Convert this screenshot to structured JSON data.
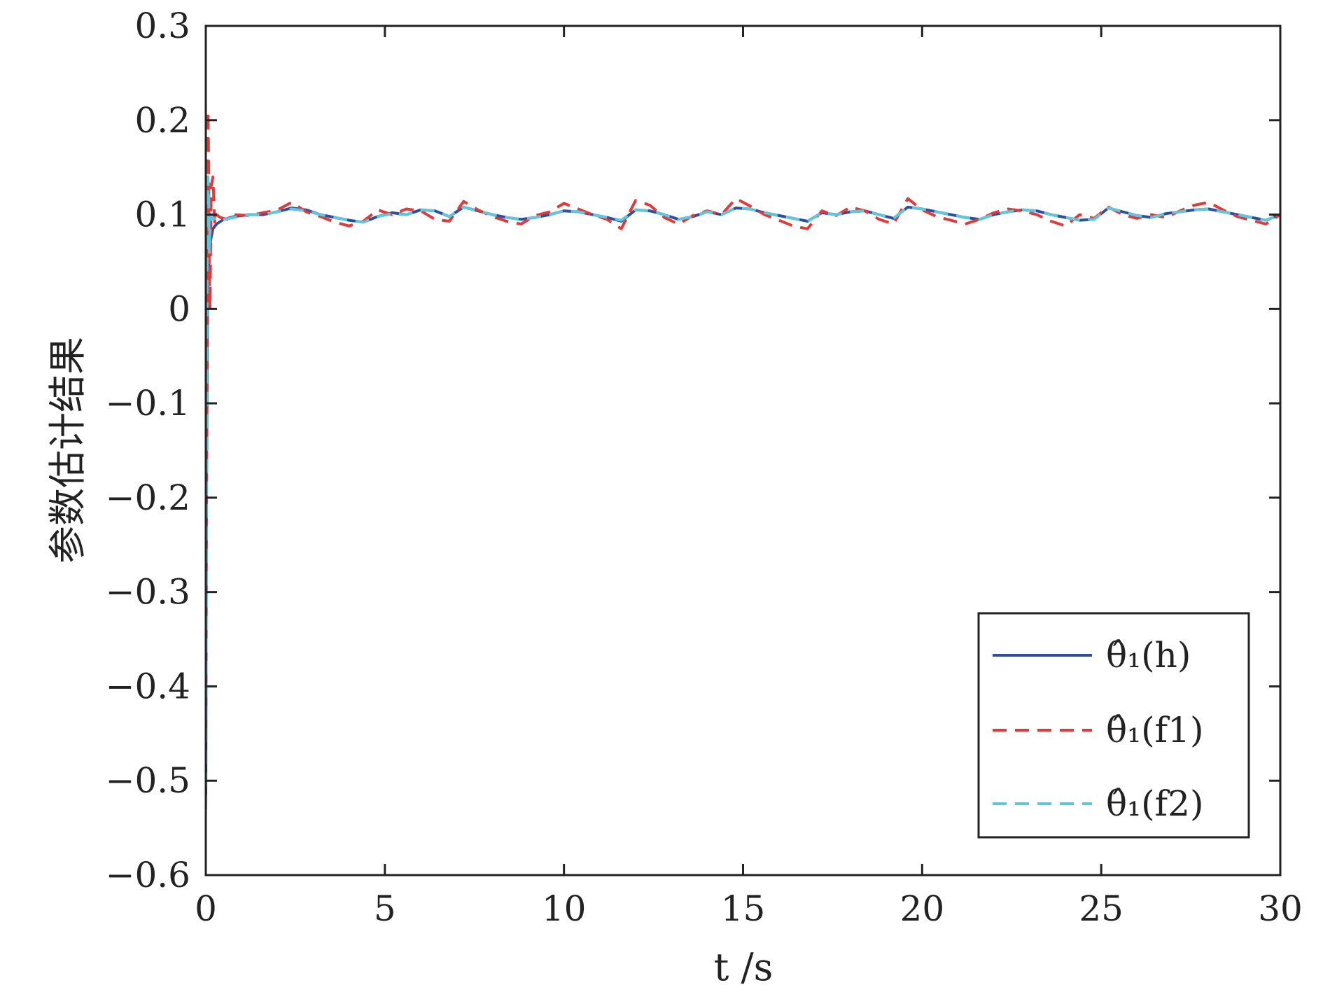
{
  "chart_data": {
    "type": "line",
    "xlabel": "t /s",
    "ylabel": "参数估计结果",
    "xlim": [
      0,
      30
    ],
    "ylim": [
      -0.6,
      0.3
    ],
    "xticks": [
      0,
      5,
      10,
      15,
      20,
      25,
      30
    ],
    "xtick_labels": [
      "0",
      "5",
      "10",
      "15",
      "20",
      "25",
      "30"
    ],
    "yticks": [
      0.3,
      0.2,
      0.1,
      0,
      -0.1,
      -0.2,
      -0.3,
      -0.4,
      -0.5,
      -0.6
    ],
    "ytick_labels": [
      "0.3",
      "0.2",
      "0.1",
      "0",
      "−0.1",
      "−0.2",
      "−0.3",
      "−0.4",
      "−0.5",
      "−0.6"
    ],
    "grid": false,
    "legend_position": "bottom-right",
    "series": [
      {
        "name": "θ̂₁(h)",
        "color": "#2b4fa3",
        "style": "solid",
        "x": [
          0,
          0.02,
          0.05,
          0.08,
          0.12,
          0.2,
          0.3,
          0.5,
          0.8,
          1.2,
          1.6,
          2.0,
          2.4,
          2.8,
          3.2,
          3.6,
          4.0,
          4.4,
          4.8,
          5.2,
          5.6,
          6.0,
          6.4,
          6.8,
          7.2,
          7.6,
          8.0,
          8.4,
          8.8,
          9.2,
          9.6,
          10.0,
          10.4,
          10.8,
          11.2,
          11.6,
          12.0,
          12.4,
          12.8,
          13.2,
          13.6,
          14.0,
          14.4,
          14.8,
          15.2,
          15.6,
          16.0,
          16.4,
          16.8,
          17.2,
          17.6,
          18.0,
          18.4,
          18.8,
          19.2,
          19.6,
          20.0,
          20.4,
          20.8,
          21.2,
          21.6,
          22.0,
          22.4,
          22.8,
          23.2,
          23.6,
          24.0,
          24.4,
          24.8,
          25.2,
          25.6,
          26.0,
          26.4,
          26.8,
          27.2,
          27.6,
          28.0,
          28.4,
          28.8,
          29.2,
          29.6,
          30.0
        ],
        "y": [
          -0.53,
          -0.2,
          0.02,
          0.05,
          0.07,
          0.085,
          0.09,
          0.095,
          0.098,
          0.1,
          0.1,
          0.103,
          0.107,
          0.105,
          0.1,
          0.097,
          0.094,
          0.092,
          0.098,
          0.102,
          0.1,
          0.105,
          0.104,
          0.098,
          0.108,
          0.104,
          0.1,
          0.097,
          0.095,
          0.097,
          0.1,
          0.104,
          0.103,
          0.1,
          0.097,
          0.093,
          0.105,
          0.104,
          0.1,
          0.095,
          0.098,
          0.103,
          0.1,
          0.107,
          0.106,
          0.102,
          0.099,
          0.096,
          0.093,
          0.102,
          0.1,
          0.103,
          0.104,
          0.1,
          0.096,
          0.108,
          0.106,
          0.103,
          0.1,
          0.097,
          0.095,
          0.1,
          0.103,
          0.105,
          0.104,
          0.1,
          0.097,
          0.094,
          0.095,
          0.107,
          0.103,
          0.099,
          0.097,
          0.101,
          0.103,
          0.105,
          0.106,
          0.103,
          0.1,
          0.097,
          0.094,
          0.1
        ]
      },
      {
        "name": "θ̂₁(f1)",
        "color": "#e03a3a",
        "style": "dashed",
        "x": [
          0,
          0.02,
          0.04,
          0.06,
          0.08,
          0.1,
          0.12,
          0.15,
          0.2,
          0.25,
          0.3,
          0.4,
          0.6,
          0.8,
          1.2,
          1.6,
          2.0,
          2.4,
          2.8,
          3.2,
          3.6,
          4.0,
          4.4,
          4.8,
          5.2,
          5.6,
          6.0,
          6.4,
          6.8,
          7.2,
          7.6,
          8.0,
          8.4,
          8.8,
          9.2,
          9.6,
          10.0,
          10.4,
          10.8,
          11.2,
          11.6,
          12.0,
          12.4,
          12.8,
          13.2,
          13.6,
          14.0,
          14.4,
          14.8,
          15.2,
          15.6,
          16.0,
          16.4,
          16.8,
          17.2,
          17.6,
          18.0,
          18.4,
          18.8,
          19.2,
          19.6,
          20.0,
          20.4,
          20.8,
          21.2,
          21.6,
          22.0,
          22.4,
          22.8,
          23.2,
          23.6,
          24.0,
          24.4,
          24.8,
          25.2,
          25.6,
          26.0,
          26.4,
          26.8,
          27.2,
          27.6,
          28.0,
          28.4,
          28.8,
          29.2,
          29.6,
          30.0
        ],
        "y": [
          -0.45,
          -0.1,
          0.1,
          0.21,
          0.16,
          0.02,
          0.0,
          0.13,
          0.14,
          0.09,
          0.1,
          0.097,
          0.095,
          0.1,
          0.099,
          0.102,
          0.105,
          0.113,
          0.103,
          0.098,
          0.092,
          0.088,
          0.093,
          0.105,
          0.1,
          0.106,
          0.104,
          0.095,
          0.093,
          0.114,
          0.105,
          0.098,
          0.093,
          0.09,
          0.099,
          0.103,
          0.112,
          0.106,
          0.1,
          0.095,
          0.085,
          0.115,
          0.11,
          0.097,
          0.09,
          0.099,
          0.104,
          0.1,
          0.117,
          0.109,
          0.1,
          0.094,
          0.088,
          0.085,
          0.104,
          0.099,
          0.108,
          0.104,
          0.095,
          0.09,
          0.117,
          0.105,
          0.098,
          0.094,
          0.09,
          0.095,
          0.102,
          0.106,
          0.104,
          0.1,
          0.093,
          0.088,
          0.1,
          0.096,
          0.108,
          0.1,
          0.096,
          0.1,
          0.097,
          0.104,
          0.11,
          0.113,
          0.105,
          0.098,
          0.094,
          0.09,
          0.1
        ]
      },
      {
        "name": "θ̂₁(f2)",
        "color": "#62c6db",
        "style": "dashed",
        "x": [
          0,
          0.02,
          0.04,
          0.06,
          0.08,
          0.1,
          0.12,
          0.15,
          0.2,
          0.3,
          0.5,
          0.8,
          1.2,
          1.6,
          2.0,
          2.4,
          2.8,
          3.2,
          3.6,
          4.0,
          4.4,
          4.8,
          5.2,
          5.6,
          6.0,
          6.4,
          6.8,
          7.2,
          7.6,
          8.0,
          8.4,
          8.8,
          9.2,
          9.6,
          10.0,
          10.4,
          10.8,
          11.2,
          11.6,
          12.0,
          12.4,
          12.8,
          13.2,
          13.6,
          14.0,
          14.4,
          14.8,
          15.2,
          15.6,
          16.0,
          16.4,
          16.8,
          17.2,
          17.6,
          18.0,
          18.4,
          18.8,
          19.2,
          19.6,
          20.0,
          20.4,
          20.8,
          21.2,
          21.6,
          22.0,
          22.4,
          22.8,
          23.2,
          23.6,
          24.0,
          24.4,
          24.8,
          25.2,
          25.6,
          26.0,
          26.4,
          26.8,
          27.2,
          27.6,
          28.0,
          28.4,
          28.8,
          29.2,
          29.6,
          30.0
        ],
        "y": [
          -0.53,
          -0.15,
          0.05,
          0.14,
          0.12,
          0.06,
          0.09,
          0.1,
          0.095,
          0.097,
          0.095,
          0.097,
          0.1,
          0.1,
          0.103,
          0.106,
          0.104,
          0.1,
          0.097,
          0.094,
          0.092,
          0.098,
          0.101,
          0.1,
          0.105,
          0.104,
          0.098,
          0.108,
          0.104,
          0.1,
          0.097,
          0.095,
          0.097,
          0.1,
          0.104,
          0.103,
          0.1,
          0.097,
          0.094,
          0.105,
          0.104,
          0.1,
          0.095,
          0.098,
          0.103,
          0.1,
          0.107,
          0.106,
          0.102,
          0.099,
          0.096,
          0.093,
          0.102,
          0.1,
          0.103,
          0.104,
          0.1,
          0.096,
          0.108,
          0.106,
          0.103,
          0.1,
          0.097,
          0.095,
          0.1,
          0.103,
          0.105,
          0.104,
          0.1,
          0.097,
          0.094,
          0.095,
          0.107,
          0.103,
          0.099,
          0.097,
          0.101,
          0.103,
          0.105,
          0.106,
          0.103,
          0.1,
          0.097,
          0.094,
          0.1
        ]
      }
    ]
  }
}
